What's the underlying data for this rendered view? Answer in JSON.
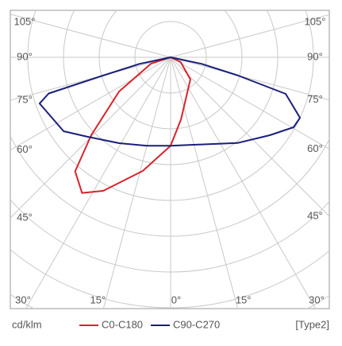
{
  "chart_data": {
    "type": "polar",
    "unit_label": "cd/klm",
    "note": "[Type2]",
    "rlim": [
      0,
      10
    ],
    "rticks": [
      1,
      2,
      3,
      4,
      5,
      6,
      7,
      8
    ],
    "xticks": [
      {
        "value": -105,
        "label": "105°"
      },
      {
        "value": -90,
        "label": "90°"
      },
      {
        "value": -75,
        "label": "75°"
      },
      {
        "value": -60,
        "label": "60°"
      },
      {
        "value": -45,
        "label": "45°"
      },
      {
        "value": -30,
        "label": "30°"
      },
      {
        "value": -15,
        "label": "15°"
      },
      {
        "value": 0,
        "label": "0°"
      },
      {
        "value": 15,
        "label": "15°"
      },
      {
        "value": 30,
        "label": "30°"
      },
      {
        "value": 45,
        "label": "45°"
      },
      {
        "value": 60,
        "label": "60°"
      },
      {
        "value": 75,
        "label": "75°"
      },
      {
        "value": 90,
        "label": "90°"
      },
      {
        "value": 105,
        "label": "105°"
      }
    ],
    "series": [
      {
        "name": "C0-C180",
        "color": "#d9232a",
        "angles": [
          -80,
          -72,
          -56.5,
          -45.6,
          -40,
          -33.2,
          -26.8,
          -13.8,
          0,
          9.5,
          41.8,
          65,
          80
        ],
        "values": [
          0,
          0.58,
          1.73,
          3.11,
          4.16,
          4.53,
          4.18,
          3.27,
          2.47,
          1.76,
          0.83,
          0.31,
          0
        ]
      },
      {
        "name": "C90-C270",
        "color": "#1a1f7a",
        "angles": [
          -90,
          -78,
          -74.9,
          -73.5,
          -70.6,
          -55.4,
          -46.4,
          -31,
          -15,
          0,
          17.6,
          38,
          51.9,
          60.4,
          65,
          72.4,
          74.9,
          78,
          90
        ],
        "values": [
          0,
          0.89,
          1.96,
          3.56,
          3.89,
          3.64,
          3.22,
          2.8,
          2.56,
          2.47,
          2.56,
          3.04,
          3.53,
          3.96,
          4.0,
          3.38,
          1.96,
          0.89,
          0
        ]
      }
    ]
  }
}
